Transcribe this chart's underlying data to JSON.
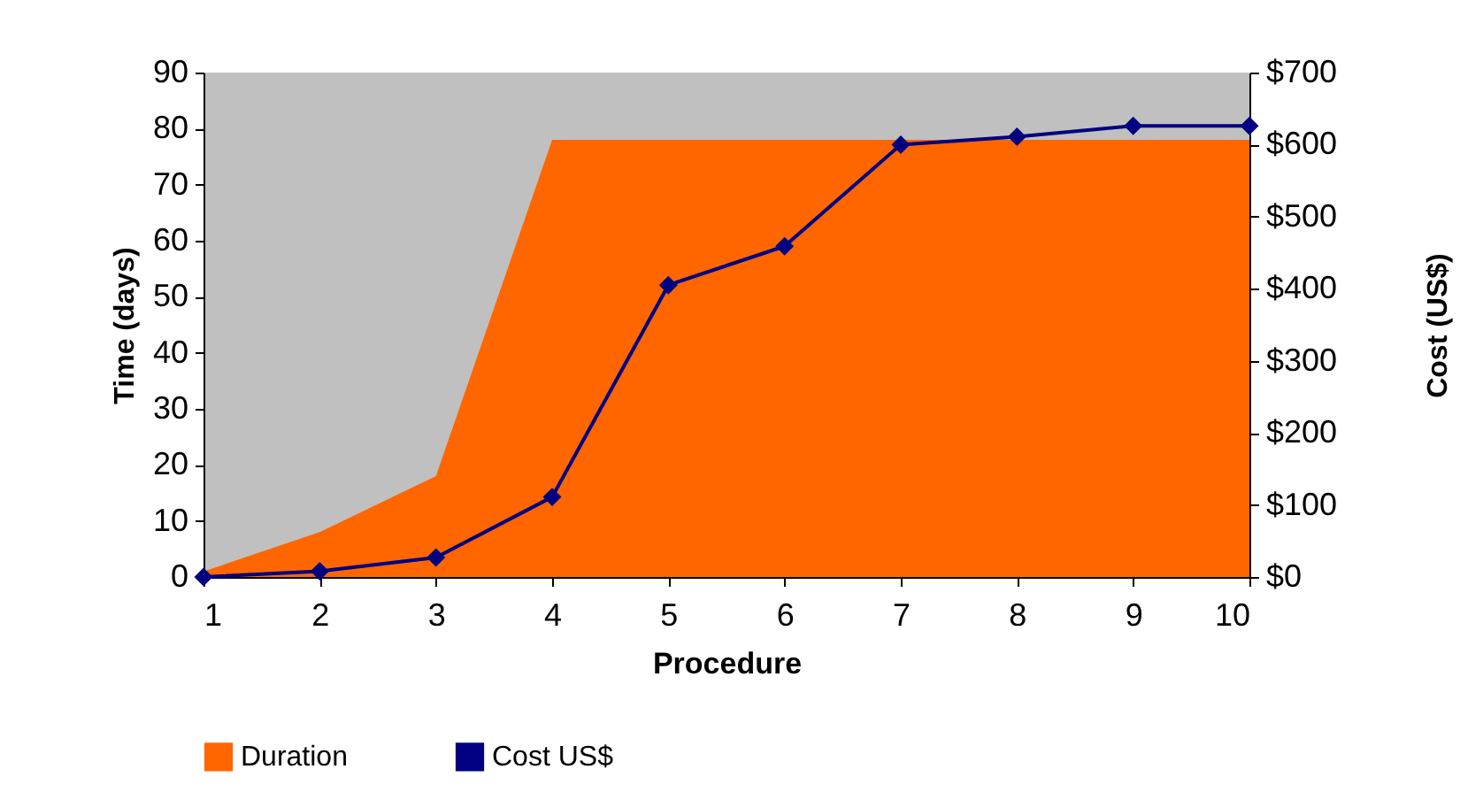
{
  "chart_data": {
    "type": "line",
    "xlabel": "Procedure",
    "ylabel": "Time (days)",
    "y2label": "Cost (US$)",
    "x": [
      1,
      2,
      3,
      4,
      5,
      6,
      7,
      8,
      9,
      10
    ],
    "series": [
      {
        "name": "Duration",
        "type": "area",
        "color": "#ff6600",
        "values": [
          1,
          8,
          18,
          78,
          78,
          78,
          78,
          78,
          78,
          78
        ]
      },
      {
        "name": "Cost US$",
        "axis": "y2",
        "color": "#000080",
        "marker": "diamond",
        "values": [
          0,
          8,
          27,
          111,
          405,
          459,
          600,
          611,
          626,
          626
        ]
      }
    ],
    "xlim": [
      1,
      10
    ],
    "xticks": [
      1,
      2,
      3,
      4,
      5,
      6,
      7,
      8,
      9,
      10
    ],
    "ylim": [
      0,
      90
    ],
    "yticks": [
      0,
      10,
      20,
      30,
      40,
      50,
      60,
      70,
      80,
      90
    ],
    "y2lim": [
      0,
      700
    ],
    "y2ticks": [
      {
        "value": 0,
        "label": "$0"
      },
      {
        "value": 100,
        "label": "$100"
      },
      {
        "value": 200,
        "label": "$200"
      },
      {
        "value": 300,
        "label": "$300"
      },
      {
        "value": 400,
        "label": "$400"
      },
      {
        "value": 500,
        "label": "$500"
      },
      {
        "value": 600,
        "label": "$600"
      },
      {
        "value": 700,
        "label": "$700"
      }
    ],
    "grid": false,
    "legend": "bottom"
  }
}
